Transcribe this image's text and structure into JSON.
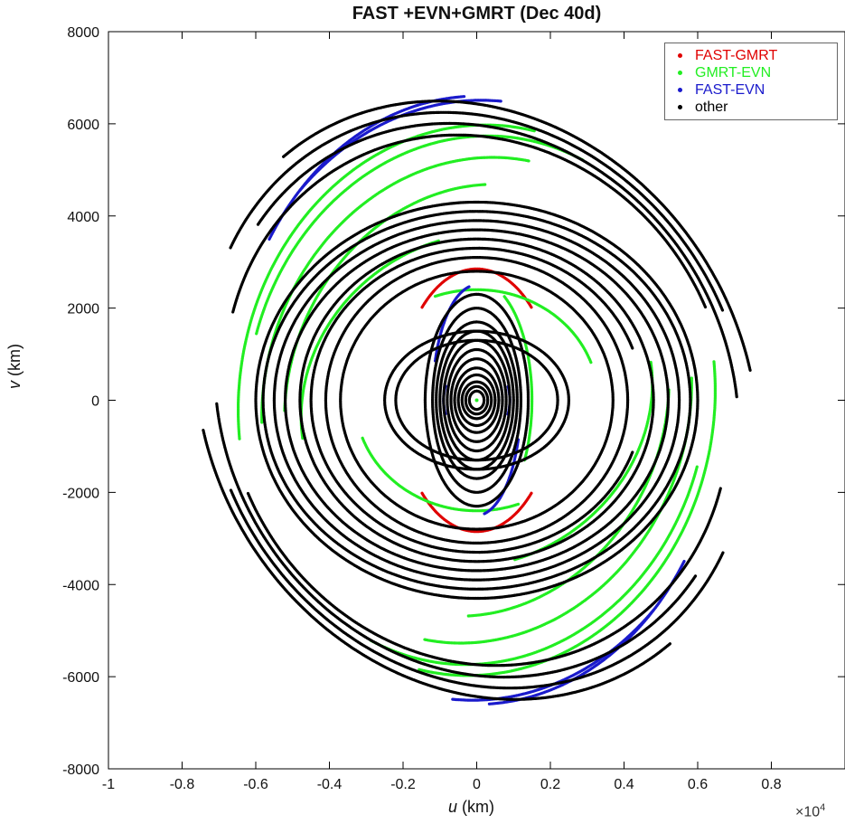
{
  "chart_data": {
    "type": "scatter",
    "title": "FAST +EVN+GMRT (Dec 40d)",
    "xlabel_var": "u",
    "xlabel_unit": " (km)",
    "ylabel_var": "v",
    "ylabel_unit": " (km)",
    "x_scale_text": "×10",
    "x_scale_exp": "4",
    "xlim": [
      -10000,
      10000
    ],
    "ylim": [
      -8000,
      8000
    ],
    "x_ticks": [
      -10000,
      -8000,
      -6000,
      -4000,
      -2000,
      0,
      2000,
      4000,
      6000,
      8000
    ],
    "x_tick_labels": [
      "-1",
      "-0.8",
      "-0.6",
      "-0.4",
      "-0.2",
      "0",
      "0.2",
      "0.4",
      "0.6",
      "0.8"
    ],
    "y_ticks": [
      -8000,
      -6000,
      -4000,
      -2000,
      0,
      2000,
      4000,
      6000,
      8000
    ],
    "y_tick_labels": [
      "-8000",
      "-6000",
      "-4000",
      "-2000",
      "0",
      "2000",
      "4000",
      "6000",
      "8000"
    ],
    "grid": false,
    "legend_position": "top-right",
    "series": [
      {
        "name": "FAST-GMRT",
        "color": "#e00000",
        "tracks": [
          {
            "a": 2850,
            "b": 2100,
            "rot": 90,
            "start": 135,
            "end": 225,
            "pts": 44
          },
          {
            "a": 2850,
            "b": 2100,
            "rot": 90,
            "start": -45,
            "end": 45,
            "pts": 44
          }
        ]
      },
      {
        "name": "GMRT-EVN",
        "color": "#22ee22",
        "tracks": [
          {
            "a": 4800,
            "b": 3600,
            "rot": 10,
            "start": 95,
            "end": 180,
            "pts": 70
          },
          {
            "a": 4800,
            "b": 3600,
            "rot": 10,
            "start": -85,
            "end": 0,
            "pts": 70
          },
          {
            "a": 5300,
            "b": 4600,
            "rot": 20,
            "start": 70,
            "end": 160,
            "pts": 80
          },
          {
            "a": 5300,
            "b": 4600,
            "rot": 20,
            "start": 250,
            "end": 340,
            "pts": 80
          },
          {
            "a": 5900,
            "b": 5200,
            "rot": 18,
            "start": 60,
            "end": 165,
            "pts": 90
          },
          {
            "a": 5900,
            "b": 5200,
            "rot": 18,
            "start": 240,
            "end": 345,
            "pts": 90
          },
          {
            "a": 6300,
            "b": 5700,
            "rot": 14,
            "start": 50,
            "end": 150,
            "pts": 90
          },
          {
            "a": 6300,
            "b": 5700,
            "rot": 14,
            "start": 230,
            "end": 330,
            "pts": 90
          },
          {
            "a": 6500,
            "b": 5950,
            "rot": 12,
            "start": 65,
            "end": 175,
            "pts": 90
          },
          {
            "a": 6500,
            "b": 5950,
            "rot": 12,
            "start": 245,
            "end": 355,
            "pts": 90
          },
          {
            "a": 3300,
            "b": 2400,
            "rot": 0,
            "start": 200,
            "end": 290,
            "pts": 50
          },
          {
            "a": 3300,
            "b": 2400,
            "rot": 0,
            "start": 20,
            "end": 110,
            "pts": 50
          },
          {
            "a": 1500,
            "b": 2600,
            "rot": 0,
            "start": -30,
            "end": 60,
            "pts": 40
          }
        ]
      },
      {
        "name": "FAST-EVN",
        "color": "#1a1acc",
        "tracks": [
          {
            "a": 6650,
            "b": 6600,
            "rot": 8,
            "start": 85,
            "end": 140,
            "pts": 70
          },
          {
            "a": 6650,
            "b": 6600,
            "rot": 8,
            "start": 265,
            "end": 320,
            "pts": 70
          },
          {
            "a": 6850,
            "b": 6500,
            "rot": 10,
            "start": 75,
            "end": 125,
            "pts": 60
          },
          {
            "a": 6850,
            "b": 6500,
            "rot": 10,
            "start": 255,
            "end": 305,
            "pts": 60
          },
          {
            "a": 1200,
            "b": 2500,
            "rot": 0,
            "start": 100,
            "end": 160,
            "pts": 30
          },
          {
            "a": 1200,
            "b": 2500,
            "rot": 0,
            "start": 280,
            "end": 340,
            "pts": 30
          },
          {
            "a": 900,
            "b": 900,
            "rot": 0,
            "start": 160,
            "end": 200,
            "pts": 20
          },
          {
            "a": 900,
            "b": 900,
            "rot": 0,
            "start": -20,
            "end": 20,
            "pts": 20
          }
        ]
      },
      {
        "name": "other",
        "color": "#000000",
        "tracks": [
          {
            "a": 7800,
            "b": 6300,
            "rot": -20,
            "start": 30,
            "end": 150,
            "pts": 110
          },
          {
            "a": 7800,
            "b": 6300,
            "rot": -20,
            "start": 210,
            "end": 330,
            "pts": 110
          },
          {
            "a": 7500,
            "b": 6100,
            "rot": -18,
            "start": 40,
            "end": 170,
            "pts": 110
          },
          {
            "a": 7500,
            "b": 6100,
            "rot": -18,
            "start": 220,
            "end": 350,
            "pts": 110
          },
          {
            "a": 7200,
            "b": 5900,
            "rot": -16,
            "start": 20,
            "end": 160,
            "pts": 110
          },
          {
            "a": 7200,
            "b": 5900,
            "rot": -16,
            "start": 200,
            "end": 340,
            "pts": 110
          },
          {
            "a": 6900,
            "b": 5700,
            "rot": -12,
            "start": 35,
            "end": 175,
            "pts": 110
          },
          {
            "a": 6900,
            "b": 5700,
            "rot": -12,
            "start": 215,
            "end": 355,
            "pts": 110
          },
          {
            "a": 6000,
            "b": 4300,
            "rot": 0,
            "start": 0,
            "end": 360,
            "pts": 160
          },
          {
            "a": 5800,
            "b": 4100,
            "rot": 0,
            "start": 0,
            "end": 360,
            "pts": 160
          },
          {
            "a": 5500,
            "b": 3900,
            "rot": 0,
            "start": 0,
            "end": 360,
            "pts": 150
          },
          {
            "a": 5200,
            "b": 3700,
            "rot": 0,
            "start": 0,
            "end": 360,
            "pts": 150
          },
          {
            "a": 4800,
            "b": 3500,
            "rot": 0,
            "start": 0,
            "end": 360,
            "pts": 140
          },
          {
            "a": 4500,
            "b": 3300,
            "rot": 0,
            "start": 20,
            "end": 340,
            "pts": 130
          },
          {
            "a": 4100,
            "b": 3100,
            "rot": 0,
            "start": 0,
            "end": 360,
            "pts": 130
          },
          {
            "a": 3700,
            "b": 2800,
            "rot": 0,
            "start": 0,
            "end": 360,
            "pts": 120
          },
          {
            "a": 2500,
            "b": 1500,
            "rot": 0,
            "start": 0,
            "end": 360,
            "pts": 100
          },
          {
            "a": 2200,
            "b": 1300,
            "rot": 0,
            "start": 0,
            "end": 360,
            "pts": 90
          },
          {
            "a": 1400,
            "b": 2300,
            "rot": 0,
            "start": 0,
            "end": 360,
            "pts": 90
          },
          {
            "a": 1200,
            "b": 2000,
            "rot": 0,
            "start": 0,
            "end": 360,
            "pts": 90
          },
          {
            "a": 1100,
            "b": 1700,
            "rot": 0,
            "start": 0,
            "end": 360,
            "pts": 80
          },
          {
            "a": 1000,
            "b": 1500,
            "rot": 0,
            "start": 0,
            "end": 360,
            "pts": 80
          },
          {
            "a": 900,
            "b": 1300,
            "rot": 0,
            "start": 0,
            "end": 360,
            "pts": 70
          },
          {
            "a": 800,
            "b": 1100,
            "rot": 0,
            "start": 0,
            "end": 360,
            "pts": 70
          },
          {
            "a": 700,
            "b": 900,
            "rot": 0,
            "start": 0,
            "end": 360,
            "pts": 60
          },
          {
            "a": 600,
            "b": 700,
            "rot": 0,
            "start": 0,
            "end": 360,
            "pts": 60
          },
          {
            "a": 500,
            "b": 550,
            "rot": 0,
            "start": 0,
            "end": 360,
            "pts": 50
          },
          {
            "a": 400,
            "b": 400,
            "rot": 0,
            "start": 0,
            "end": 360,
            "pts": 40
          },
          {
            "a": 300,
            "b": 300,
            "rot": 0,
            "start": 0,
            "end": 360,
            "pts": 30
          },
          {
            "a": 200,
            "b": 200,
            "rot": 0,
            "start": 0,
            "end": 360,
            "pts": 24
          }
        ]
      }
    ]
  }
}
